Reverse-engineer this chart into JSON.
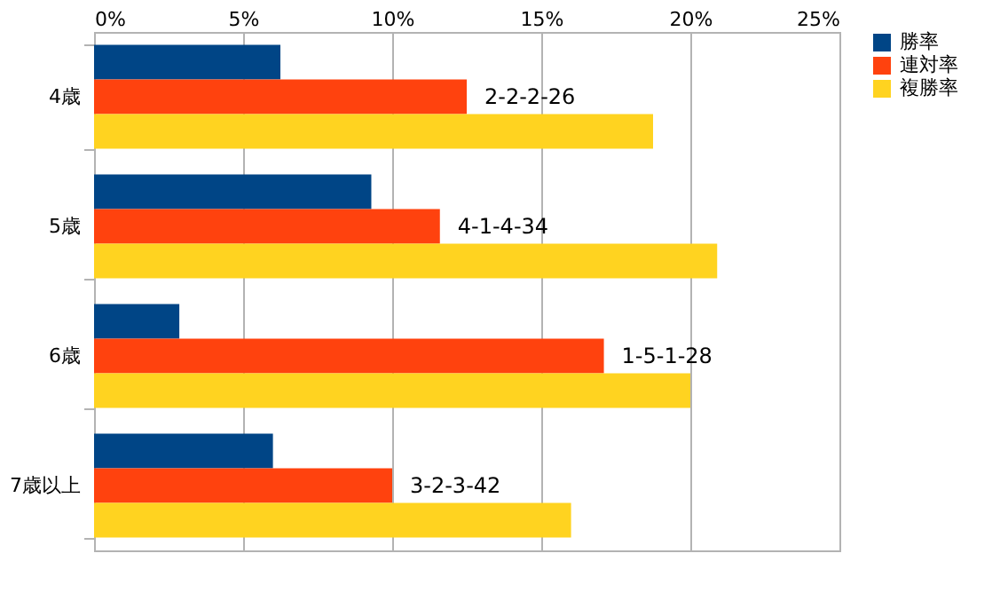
{
  "chart_data": {
    "type": "bar",
    "orientation": "horizontal",
    "categories": [
      "4歳",
      "5歳",
      "6歳",
      "7歳以上"
    ],
    "series": [
      {
        "name": "勝率",
        "color": "#004586",
        "values": [
          6.25,
          9.3,
          2.86,
          6.0
        ]
      },
      {
        "name": "連対率",
        "color": "#ff420e",
        "values": [
          12.5,
          11.6,
          17.1,
          10.0
        ]
      },
      {
        "name": "複勝率",
        "color": "#ffd320",
        "values": [
          18.75,
          20.9,
          20.0,
          16.0
        ]
      }
    ],
    "xlim": [
      0,
      25
    ],
    "xticks": [
      {
        "value": 0,
        "label": "0%"
      },
      {
        "value": 5,
        "label": "5%"
      },
      {
        "value": 10,
        "label": "10%"
      },
      {
        "value": 15,
        "label": "15%"
      },
      {
        "value": 20,
        "label": "20%"
      },
      {
        "value": 25,
        "label": "25%"
      }
    ],
    "annotations": [
      {
        "text": "2-2-2-26",
        "x": 12.5,
        "y": "4歳"
      },
      {
        "text": "4-1-4-34",
        "x": 11.6,
        "y": "5歳"
      },
      {
        "text": "1-5-1-28",
        "x": 17.1,
        "y": "6歳"
      },
      {
        "text": "3-2-3-42",
        "x": 10.0,
        "y": "7歳以上"
      }
    ],
    "grid": "x",
    "legend": "right"
  }
}
